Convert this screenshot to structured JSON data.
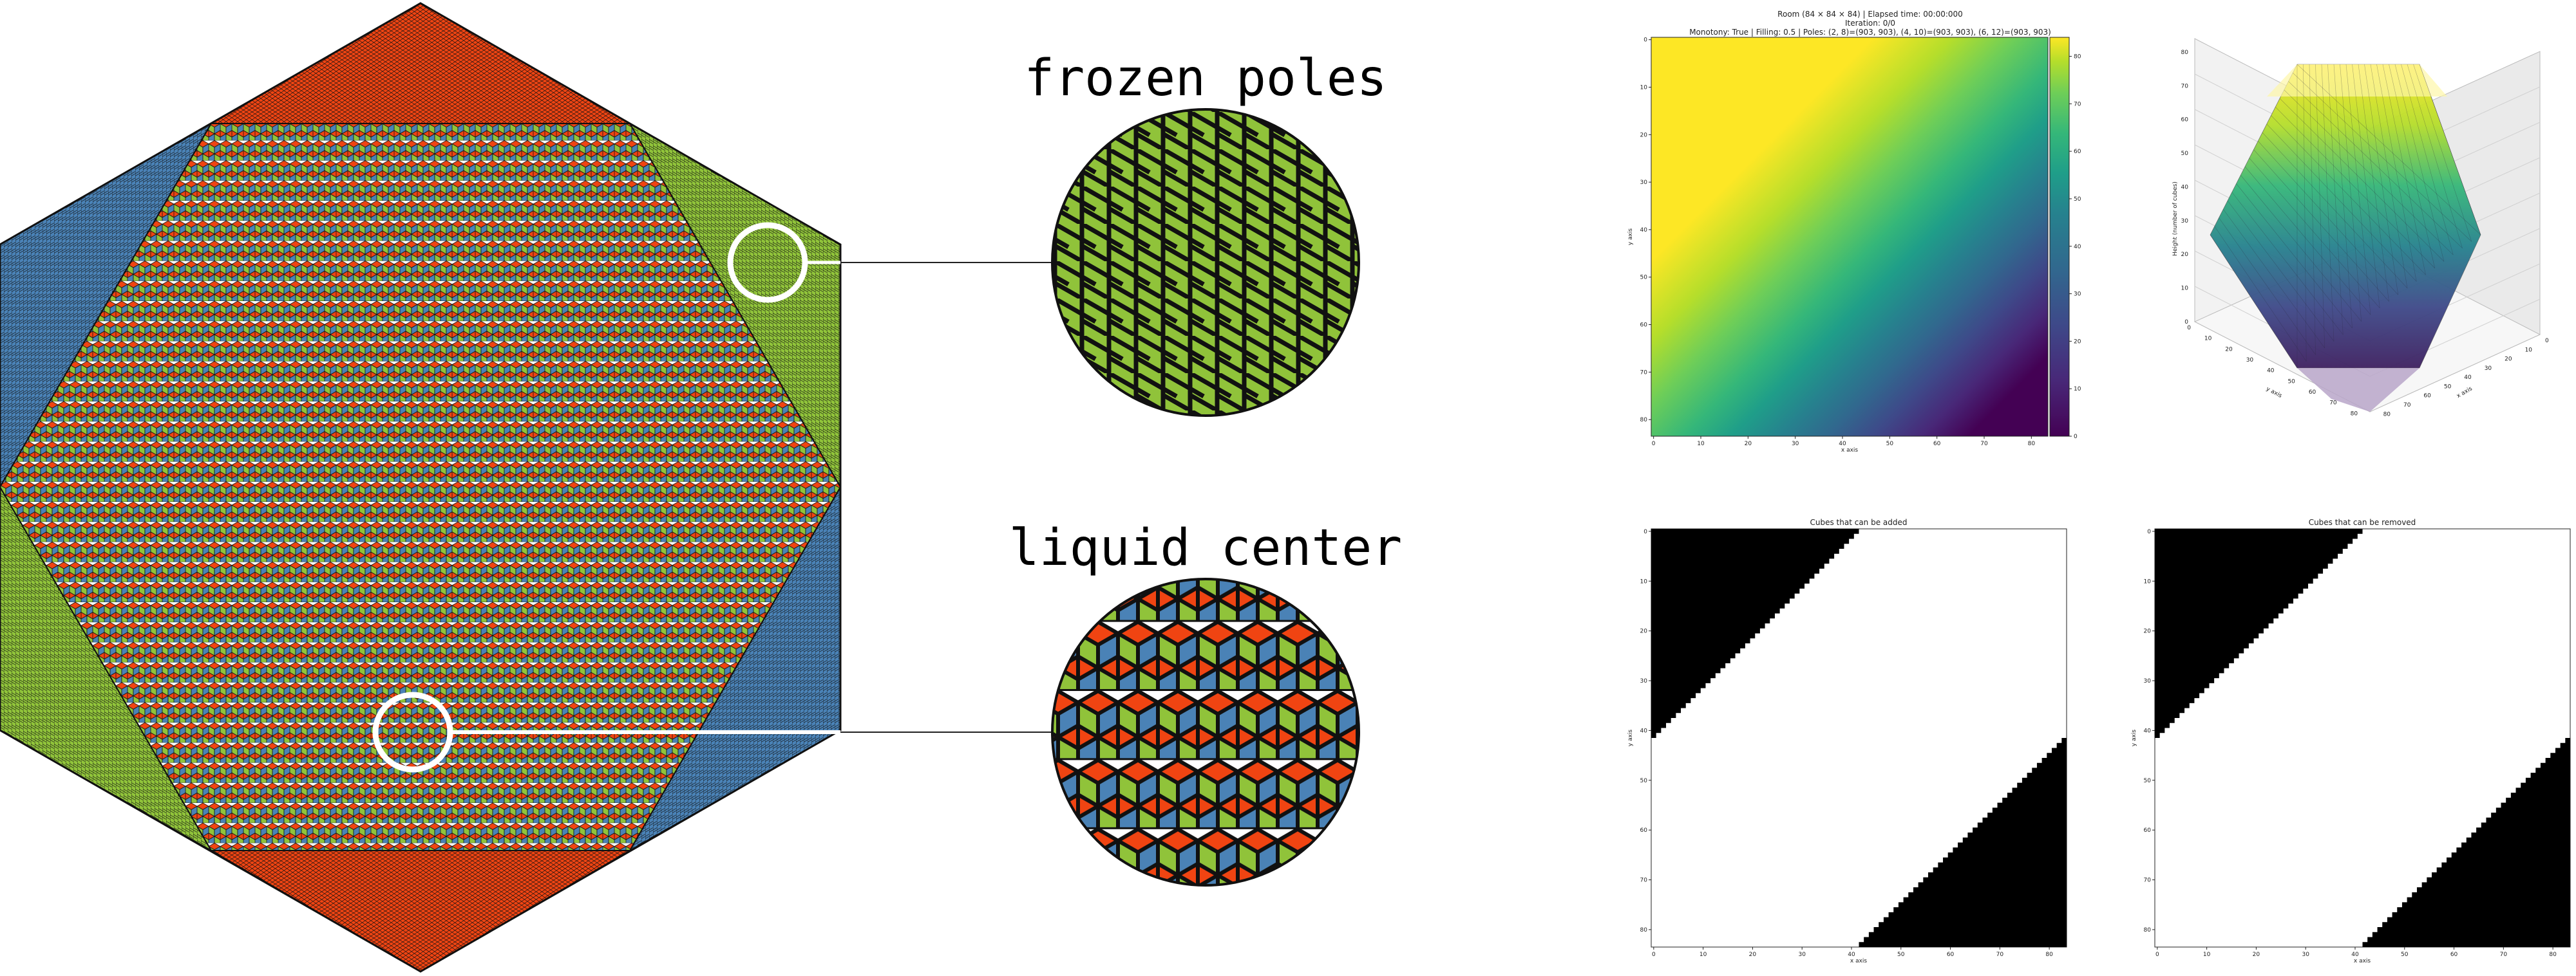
{
  "labels": {
    "frozen": "frozen poles",
    "liquid": "liquid center"
  },
  "colors": {
    "red": "#f04412",
    "green": "#90c33a",
    "blue": "#4a82b6",
    "outline": "#111111",
    "ring": "#ffffff"
  },
  "heatmap": {
    "title_line1": "Room (84 × 84 × 84) | Elapsed time: 00:00:000",
    "title_line2": "Iteration: 0/0",
    "title_line3": "Monotony: True | Filling: 0.5 | Poles: (2, 8)=(903, 903), (4, 10)=(903, 903), (6, 12)=(903, 903)",
    "xlabel": "x axis",
    "ylabel": "y axis",
    "xticks": [
      "0",
      "10",
      "20",
      "30",
      "40",
      "50",
      "60",
      "70",
      "80"
    ],
    "yticks": [
      "0",
      "10",
      "20",
      "30",
      "40",
      "50",
      "60",
      "70",
      "80"
    ],
    "colorbar_ticks": [
      "0",
      "10",
      "20",
      "30",
      "40",
      "50",
      "60",
      "70",
      "80"
    ],
    "colormap": "viridis"
  },
  "surface3d": {
    "zlabel": "Height (number of cubes)",
    "xlabel": "x axis",
    "ylabel": "y axis",
    "zticks": [
      "0",
      "10",
      "20",
      "30",
      "40",
      "50",
      "60",
      "70",
      "80"
    ],
    "xticks": [
      "0",
      "10",
      "20",
      "30",
      "40",
      "50",
      "60",
      "70",
      "80"
    ],
    "yticks": [
      "0",
      "10",
      "20",
      "30",
      "40",
      "50",
      "60",
      "70",
      "80"
    ]
  },
  "added": {
    "title": "Cubes that can be added",
    "xlabel": "x axis",
    "ylabel": "y axis",
    "xticks": [
      "0",
      "10",
      "20",
      "30",
      "40",
      "50",
      "60",
      "70",
      "80"
    ],
    "yticks": [
      "0",
      "10",
      "20",
      "30",
      "40",
      "50",
      "60",
      "70",
      "80"
    ]
  },
  "removed": {
    "title": "Cubes that can be removed",
    "xlabel": "x axis",
    "ylabel": "y axis",
    "xticks": [
      "0",
      "10",
      "20",
      "30",
      "40",
      "50",
      "60",
      "70",
      "80"
    ],
    "yticks": [
      "0",
      "10",
      "20",
      "30",
      "40",
      "50",
      "60",
      "70",
      "80"
    ]
  }
}
